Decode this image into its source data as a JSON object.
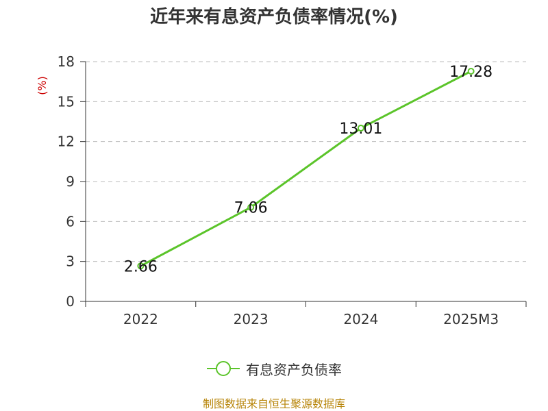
{
  "title": "近年来有息资产负债率情况(%)",
  "source": "制图数据来自恒生聚源数据库",
  "colors": {
    "line": "#5bc42a",
    "unit": "#cc0000",
    "grid": "#bbbbbb",
    "axis": "#333333",
    "text": "#333333",
    "source": "#b8860b"
  },
  "chart_data": {
    "type": "line",
    "title": "近年来有息资产负债率情况(%)",
    "categories": [
      "2022",
      "2023",
      "2024",
      "2025M3"
    ],
    "series": [
      {
        "name": "有息资产负债率",
        "values": [
          2.66,
          7.06,
          13.01,
          17.28
        ]
      }
    ],
    "data_labels": [
      "2.66",
      "7.06",
      "13.01",
      "17.28"
    ],
    "y_unit_label": "(%)",
    "ylim": [
      0,
      18
    ],
    "yticks": [
      0,
      3,
      6,
      9,
      12,
      15,
      18
    ],
    "grid": true,
    "legend": "bottom-center"
  }
}
